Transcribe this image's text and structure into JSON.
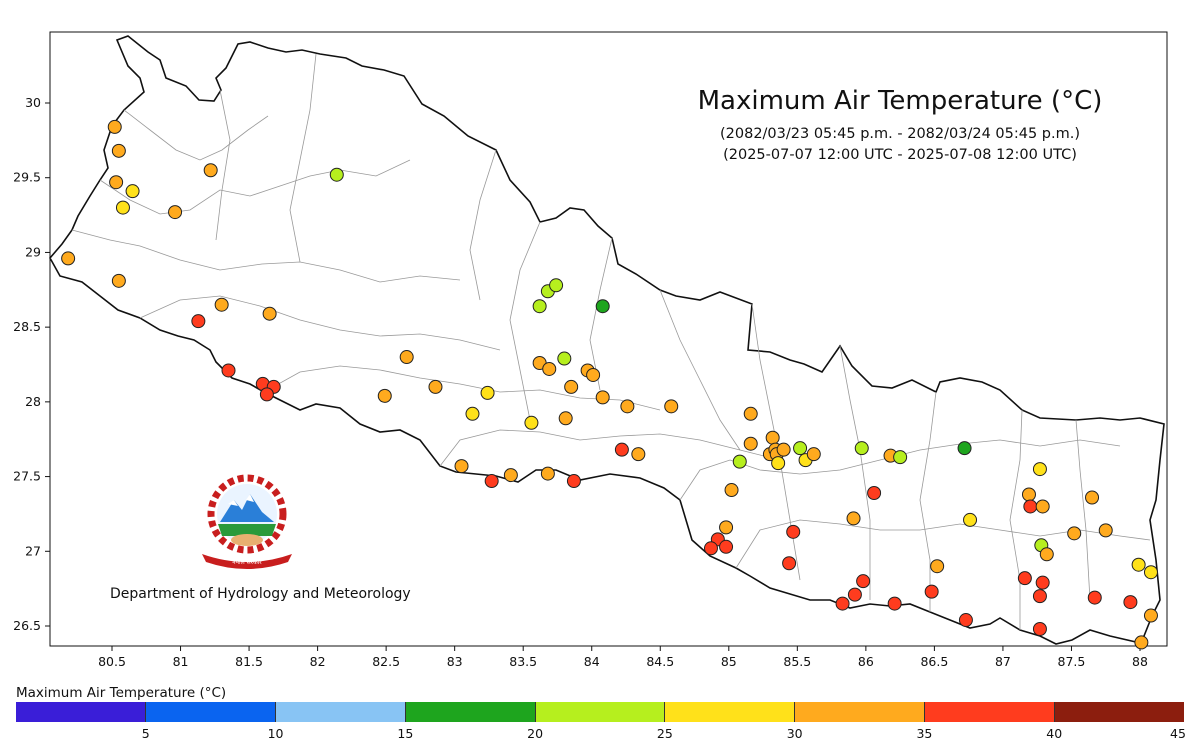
{
  "title": "Maximum Air Temperature (°C)",
  "subtitle_np": "(2082/03/23 05:45 p.m. - 2082/03/24 05:45 p.m.)",
  "subtitle_utc": "(2025-07-07 12:00 UTC - 2025-07-08 12:00 UTC)",
  "department": "Department of Hydrology and Meteorology",
  "emblem_text": "नेपाल सरकार",
  "legend": {
    "title": "Maximum Air Temperature (°C)",
    "ticks": [
      "5",
      "10",
      "15",
      "20",
      "25",
      "30",
      "35",
      "40",
      "45"
    ],
    "colors": [
      "#3a1ed8",
      "#0a64f0",
      "#88c4f4",
      "#1ea51e",
      "#b6ef1e",
      "#ffe11a",
      "#ffaa1e",
      "#ff3c1e",
      "#8c1e0e"
    ]
  },
  "axes": {
    "x_ticks": [
      "80.5",
      "81",
      "81.5",
      "82",
      "82.5",
      "83",
      "83.5",
      "84",
      "84.5",
      "85",
      "85.5",
      "86",
      "86.5",
      "87",
      "87.5",
      "88"
    ],
    "y_ticks": [
      "30",
      "29.5",
      "29",
      "28.5",
      "28",
      "27.5",
      "27",
      "26.5"
    ]
  },
  "stations": [
    {
      "lon": 80.52,
      "lat": 29.84,
      "t": 31
    },
    {
      "lon": 80.55,
      "lat": 29.68,
      "t": 31
    },
    {
      "lon": 80.53,
      "lat": 29.47,
      "t": 31
    },
    {
      "lon": 80.65,
      "lat": 29.41,
      "t": 28
    },
    {
      "lon": 80.58,
      "lat": 29.3,
      "t": 28
    },
    {
      "lon": 81.22,
      "lat": 29.55,
      "t": 31
    },
    {
      "lon": 80.96,
      "lat": 29.27,
      "t": 31
    },
    {
      "lon": 80.18,
      "lat": 28.96,
      "t": 31
    },
    {
      "lon": 80.55,
      "lat": 28.81,
      "t": 31
    },
    {
      "lon": 82.14,
      "lat": 29.52,
      "t": 24
    },
    {
      "lon": 81.3,
      "lat": 28.65,
      "t": 31
    },
    {
      "lon": 81.13,
      "lat": 28.54,
      "t": 37
    },
    {
      "lon": 81.65,
      "lat": 28.59,
      "t": 31
    },
    {
      "lon": 81.35,
      "lat": 28.21,
      "t": 37
    },
    {
      "lon": 81.6,
      "lat": 28.12,
      "t": 37
    },
    {
      "lon": 81.68,
      "lat": 28.1,
      "t": 37
    },
    {
      "lon": 81.63,
      "lat": 28.05,
      "t": 37
    },
    {
      "lon": 82.65,
      "lat": 28.3,
      "t": 31
    },
    {
      "lon": 82.49,
      "lat": 28.04,
      "t": 31
    },
    {
      "lon": 82.86,
      "lat": 28.1,
      "t": 31
    },
    {
      "lon": 83.13,
      "lat": 27.92,
      "t": 28
    },
    {
      "lon": 83.24,
      "lat": 28.06,
      "t": 28
    },
    {
      "lon": 83.05,
      "lat": 27.57,
      "t": 31
    },
    {
      "lon": 83.27,
      "lat": 27.47,
      "t": 37
    },
    {
      "lon": 83.41,
      "lat": 27.51,
      "t": 31
    },
    {
      "lon": 83.56,
      "lat": 27.86,
      "t": 28
    },
    {
      "lon": 83.62,
      "lat": 28.64,
      "t": 24
    },
    {
      "lon": 83.68,
      "lat": 28.74,
      "t": 24
    },
    {
      "lon": 83.74,
      "lat": 28.78,
      "t": 24
    },
    {
      "lon": 84.08,
      "lat": 28.64,
      "t": 18
    },
    {
      "lon": 83.62,
      "lat": 28.26,
      "t": 31
    },
    {
      "lon": 83.69,
      "lat": 28.22,
      "t": 31
    },
    {
      "lon": 83.8,
      "lat": 28.29,
      "t": 24
    },
    {
      "lon": 83.97,
      "lat": 28.21,
      "t": 31
    },
    {
      "lon": 84.01,
      "lat": 28.18,
      "t": 31
    },
    {
      "lon": 83.85,
      "lat": 28.1,
      "t": 31
    },
    {
      "lon": 84.08,
      "lat": 28.03,
      "t": 31
    },
    {
      "lon": 83.81,
      "lat": 27.89,
      "t": 31
    },
    {
      "lon": 84.26,
      "lat": 27.97,
      "t": 31
    },
    {
      "lon": 84.58,
      "lat": 27.97,
      "t": 31
    },
    {
      "lon": 83.68,
      "lat": 27.52,
      "t": 31
    },
    {
      "lon": 83.87,
      "lat": 27.47,
      "t": 37
    },
    {
      "lon": 84.22,
      "lat": 27.68,
      "t": 37
    },
    {
      "lon": 84.34,
      "lat": 27.65,
      "t": 31
    },
    {
      "lon": 85.16,
      "lat": 27.92,
      "t": 31
    },
    {
      "lon": 85.16,
      "lat": 27.72,
      "t": 31
    },
    {
      "lon": 85.08,
      "lat": 27.6,
      "t": 24
    },
    {
      "lon": 85.3,
      "lat": 27.65,
      "t": 31
    },
    {
      "lon": 85.32,
      "lat": 27.76,
      "t": 31
    },
    {
      "lon": 85.34,
      "lat": 27.68,
      "t": 31
    },
    {
      "lon": 85.35,
      "lat": 27.65,
      "t": 31
    },
    {
      "lon": 85.4,
      "lat": 27.68,
      "t": 31
    },
    {
      "lon": 85.36,
      "lat": 27.59,
      "t": 28
    },
    {
      "lon": 85.52,
      "lat": 27.69,
      "t": 24
    },
    {
      "lon": 85.56,
      "lat": 27.61,
      "t": 28
    },
    {
      "lon": 85.62,
      "lat": 27.65,
      "t": 31
    },
    {
      "lon": 85.02,
      "lat": 27.41,
      "t": 31
    },
    {
      "lon": 84.98,
      "lat": 27.16,
      "t": 31
    },
    {
      "lon": 84.92,
      "lat": 27.08,
      "t": 37
    },
    {
      "lon": 84.87,
      "lat": 27.02,
      "t": 37
    },
    {
      "lon": 84.98,
      "lat": 27.03,
      "t": 37
    },
    {
      "lon": 85.47,
      "lat": 27.13,
      "t": 37
    },
    {
      "lon": 85.44,
      "lat": 26.92,
      "t": 37
    },
    {
      "lon": 85.97,
      "lat": 27.69,
      "t": 24
    },
    {
      "lon": 86.18,
      "lat": 27.64,
      "t": 31
    },
    {
      "lon": 86.25,
      "lat": 27.63,
      "t": 24
    },
    {
      "lon": 86.06,
      "lat": 27.39,
      "t": 37
    },
    {
      "lon": 85.91,
      "lat": 27.22,
      "t": 31
    },
    {
      "lon": 85.83,
      "lat": 26.65,
      "t": 37
    },
    {
      "lon": 85.92,
      "lat": 26.71,
      "t": 37
    },
    {
      "lon": 85.98,
      "lat": 26.8,
      "t": 37
    },
    {
      "lon": 86.21,
      "lat": 26.65,
      "t": 37
    },
    {
      "lon": 86.52,
      "lat": 26.9,
      "t": 31
    },
    {
      "lon": 86.48,
      "lat": 26.73,
      "t": 37
    },
    {
      "lon": 86.72,
      "lat": 27.69,
      "t": 18
    },
    {
      "lon": 86.76,
      "lat": 27.21,
      "t": 28
    },
    {
      "lon": 86.73,
      "lat": 26.54,
      "t": 37
    },
    {
      "lon": 87.27,
      "lat": 27.55,
      "t": 28
    },
    {
      "lon": 87.19,
      "lat": 27.38,
      "t": 31
    },
    {
      "lon": 87.2,
      "lat": 27.3,
      "t": 37
    },
    {
      "lon": 87.29,
      "lat": 27.3,
      "t": 31
    },
    {
      "lon": 87.28,
      "lat": 27.04,
      "t": 24
    },
    {
      "lon": 87.32,
      "lat": 26.98,
      "t": 31
    },
    {
      "lon": 87.16,
      "lat": 26.82,
      "t": 37
    },
    {
      "lon": 87.29,
      "lat": 26.79,
      "t": 37
    },
    {
      "lon": 87.27,
      "lat": 26.7,
      "t": 37
    },
    {
      "lon": 87.27,
      "lat": 26.48,
      "t": 37
    },
    {
      "lon": 87.52,
      "lat": 27.12,
      "t": 31
    },
    {
      "lon": 87.65,
      "lat": 27.36,
      "t": 31
    },
    {
      "lon": 87.75,
      "lat": 27.14,
      "t": 31
    },
    {
      "lon": 87.67,
      "lat": 26.69,
      "t": 37
    },
    {
      "lon": 87.93,
      "lat": 26.66,
      "t": 37
    },
    {
      "lon": 87.99,
      "lat": 26.91,
      "t": 28
    },
    {
      "lon": 88.08,
      "lat": 26.86,
      "t": 28
    },
    {
      "lon": 88.08,
      "lat": 26.57,
      "t": 31
    },
    {
      "lon": 88.01,
      "lat": 26.39,
      "t": 31
    }
  ]
}
